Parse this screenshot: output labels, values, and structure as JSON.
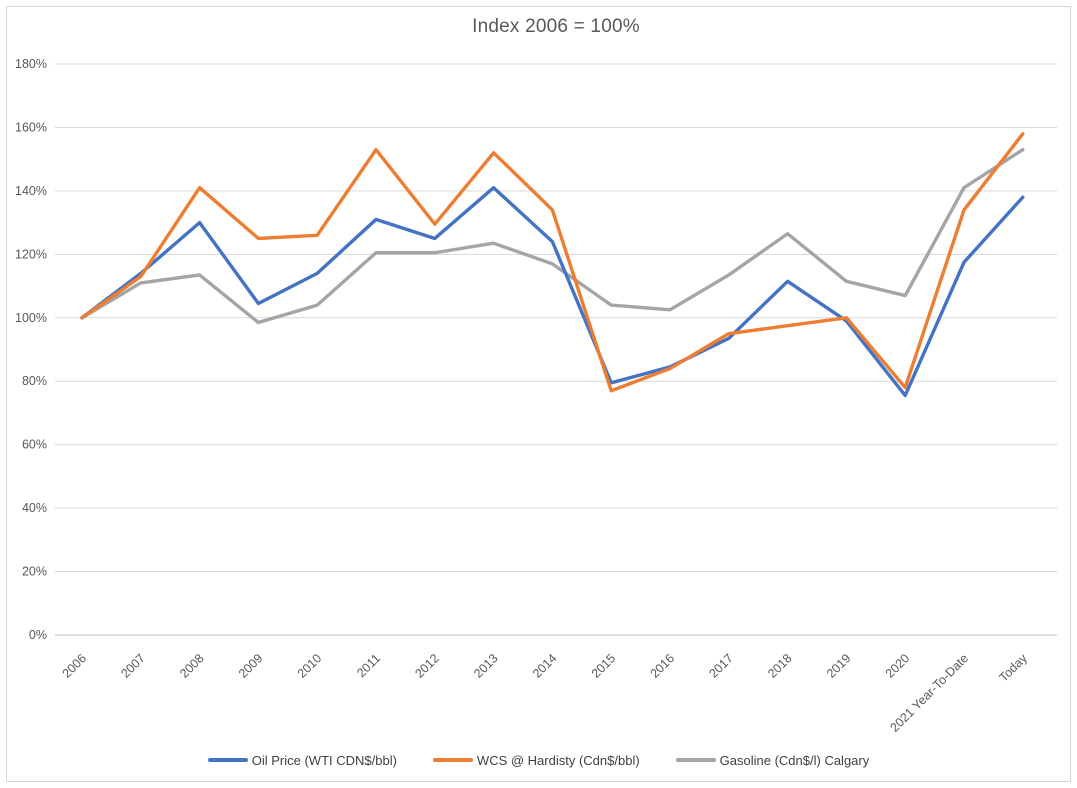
{
  "chart_data": {
    "type": "line",
    "title": "Index 2006 = 100%",
    "categories": [
      "2006",
      "2007",
      "2008",
      "2009",
      "2010",
      "2011",
      "2012",
      "2013",
      "2014",
      "2015",
      "2016",
      "2017",
      "2018",
      "2019",
      "2020",
      "2021 Year-To-Date",
      "Today"
    ],
    "series": [
      {
        "name": "Oil Price (WTI CDN$/bbl)",
        "color": "#4472C4",
        "values": [
          100,
          114,
          130,
          104.5,
          114,
          131,
          125,
          141,
          124,
          79.5,
          84.5,
          93.5,
          111.5,
          99,
          75.5,
          117.5,
          138
        ]
      },
      {
        "name": "WCS @ Hardisty (Cdn$/bbl)",
        "color": "#ED7D31",
        "values": [
          100,
          113,
          141,
          125,
          126,
          153,
          129.5,
          152,
          134,
          77,
          84,
          95,
          97.5,
          100,
          78,
          134,
          158
        ]
      },
      {
        "name": "Gasoline (Cdn$/l) Calgary",
        "color": "#A5A5A5",
        "values": [
          100,
          111,
          113.5,
          98.5,
          104,
          120.5,
          120.5,
          123.5,
          117,
          104,
          102.5,
          113.5,
          126.5,
          111.5,
          107,
          141,
          153
        ]
      }
    ],
    "draw_order": [
      2,
      0,
      1
    ],
    "xlabel": "",
    "ylabel": "",
    "ylim": [
      0,
      180
    ],
    "ytick_step": 20,
    "ytick_labels": [
      "0%",
      "20%",
      "40%",
      "60%",
      "80%",
      "100%",
      "120%",
      "140%",
      "160%",
      "180%"
    ],
    "grid": "horizontal",
    "legend_position": "bottom",
    "x_label_rotation_deg": 45,
    "colors": {
      "grid": "#D9D9D9",
      "axis_line": "#BFBFBF",
      "axis_text": "#595959",
      "title_text": "#595959",
      "legend_text": "#404040",
      "border": "#D6D6D6",
      "background": "#FFFFFF"
    }
  }
}
